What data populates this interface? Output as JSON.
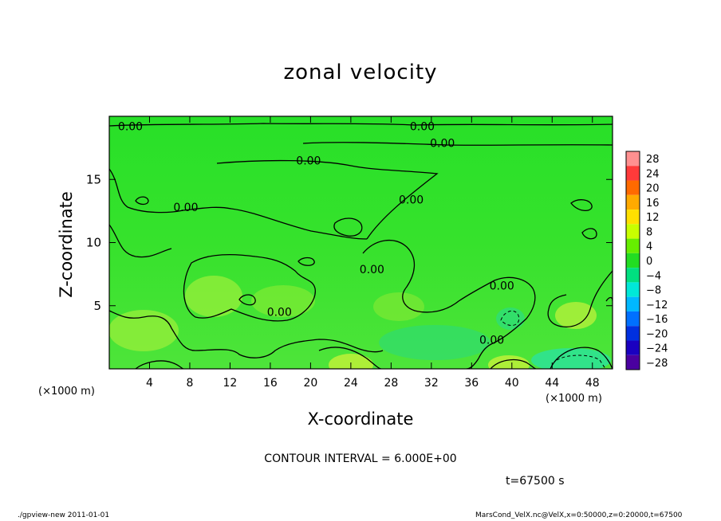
{
  "chart_data": {
    "type": "heatmap",
    "title": "zonal velocity",
    "xlabel": "X-coordinate",
    "ylabel": "Z-coordinate",
    "x_unit_label": "(×1000 m)",
    "y_unit_label": "(×1000 m)",
    "x_range": [
      0,
      50
    ],
    "y_range": [
      0,
      20
    ],
    "x_ticks": [
      4,
      8,
      12,
      16,
      20,
      24,
      28,
      32,
      36,
      40,
      44,
      48
    ],
    "y_ticks": [
      5,
      10,
      15
    ],
    "colorbar": {
      "levels": [
        28,
        24,
        20,
        16,
        12,
        8,
        4,
        0,
        -4,
        -8,
        -12,
        -16,
        -20,
        -24,
        -28
      ],
      "labels": [
        "28",
        "24",
        "20",
        "16",
        "12",
        "8",
        "4",
        "0",
        "−4",
        "−8",
        "−12",
        "−16",
        "−20",
        "−24",
        "−28"
      ],
      "colors": [
        "#ff9090",
        "#ff3a3a",
        "#ff6a00",
        "#ffaa00",
        "#ffe000",
        "#c8ff00",
        "#66ee00",
        "#22dd22",
        "#00e080",
        "#00e8d8",
        "#00b8ff",
        "#0070ff",
        "#0030e0",
        "#1a00c0",
        "#4a00a0"
      ]
    },
    "contour_labels": [
      {
        "text": "0.00",
        "x": 2.1,
        "z": 19.2
      },
      {
        "text": "0.00",
        "x": 31.1,
        "z": 19.2
      },
      {
        "text": "0.00",
        "x": 33.1,
        "z": 17.9
      },
      {
        "text": "0.00",
        "x": 19.8,
        "z": 16.5
      },
      {
        "text": "0.00",
        "x": 7.6,
        "z": 12.8
      },
      {
        "text": "0.00",
        "x": 30.0,
        "z": 13.4
      },
      {
        "text": "0.00",
        "x": 26.1,
        "z": 7.9
      },
      {
        "text": "0.00",
        "x": 39.0,
        "z": 6.6
      },
      {
        "text": "0.00",
        "x": 16.9,
        "z": 4.5
      },
      {
        "text": "0.00",
        "x": 38.0,
        "z": 2.3
      }
    ],
    "contour_interval_text": "CONTOUR INTERVAL = 6.000E+00",
    "grid": false
  },
  "time_label": "t=67500 s",
  "footer_left": "./gpview-new  2011-01-01",
  "footer_right": "MarsCond_VelX.nc@VelX,x=0:50000,z=0:20000,t=67500"
}
